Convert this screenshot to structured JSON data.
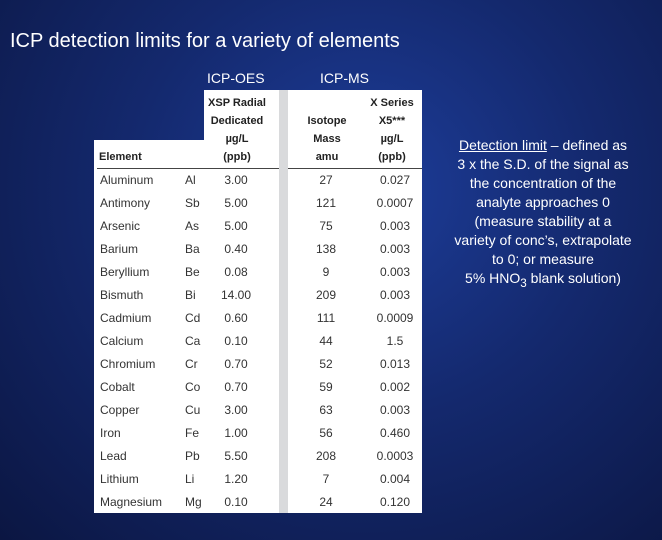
{
  "slide": {
    "title": "ICP detection limits for a variety of elements",
    "icp_oes_label": "ICP-OES",
    "icp_ms_label": "ICP-MS"
  },
  "table": {
    "headers": {
      "element": "Element",
      "oes_line1": "XSP Radial",
      "oes_line2": "Dedicated",
      "oes_line3": "µg/L",
      "oes_line4": "(ppb)",
      "isotope_line1": "Isotope",
      "isotope_line2": "Mass",
      "isotope_line3": "amu",
      "xs_line1": "X Series",
      "xs_line2": "X5***",
      "xs_line3": "µg/L",
      "xs_line4": "(ppb)"
    },
    "rows": [
      {
        "name": "Aluminum",
        "symbol": "Al",
        "oes": "3.00",
        "mass": "27",
        "ms": "0.027"
      },
      {
        "name": "Antimony",
        "symbol": "Sb",
        "oes": "5.00",
        "mass": "121",
        "ms": "0.0007"
      },
      {
        "name": "Arsenic",
        "symbol": "As",
        "oes": "5.00",
        "mass": "75",
        "ms": "0.003"
      },
      {
        "name": "Barium",
        "symbol": "Ba",
        "oes": "0.40",
        "mass": "138",
        "ms": "0.003"
      },
      {
        "name": "Beryllium",
        "symbol": "Be",
        "oes": "0.08",
        "mass": "9",
        "ms": "0.003"
      },
      {
        "name": "Bismuth",
        "symbol": "Bi",
        "oes": "14.00",
        "mass": "209",
        "ms": "0.003"
      },
      {
        "name": "Cadmium",
        "symbol": "Cd",
        "oes": "0.60",
        "mass": "111",
        "ms": "0.0009"
      },
      {
        "name": "Calcium",
        "symbol": "Ca",
        "oes": "0.10",
        "mass": "44",
        "ms": "1.5"
      },
      {
        "name": "Chromium",
        "symbol": "Cr",
        "oes": "0.70",
        "mass": "52",
        "ms": "0.013"
      },
      {
        "name": "Cobalt",
        "symbol": "Co",
        "oes": "0.70",
        "mass": "59",
        "ms": "0.002"
      },
      {
        "name": "Copper",
        "symbol": "Cu",
        "oes": "3.00",
        "mass": "63",
        "ms": "0.003"
      },
      {
        "name": "Iron",
        "symbol": "Fe",
        "oes": "1.00",
        "mass": "56",
        "ms": "0.460"
      },
      {
        "name": "Lead",
        "symbol": "Pb",
        "oes": "5.50",
        "mass": "208",
        "ms": "0.0003"
      },
      {
        "name": "Lithium",
        "symbol": "Li",
        "oes": "1.20",
        "mass": "7",
        "ms": "0.004"
      },
      {
        "name": "Magnesium",
        "symbol": "Mg",
        "oes": "0.10",
        "mass": "24",
        "ms": "0.120"
      }
    ]
  },
  "note": {
    "term": "Detection limit",
    "line1_rest": " – defined as",
    "line2": "3 x the S.D. of the signal as",
    "line3": "the concentration of the",
    "line4": "analyte approaches 0",
    "line5": "(measure stability at a",
    "line6": "variety of conc’s, extrapolate",
    "line7": "to 0; or measure",
    "line8_start": "5% HNO",
    "line8_sub": "3",
    "line8_end": " blank solution)"
  }
}
